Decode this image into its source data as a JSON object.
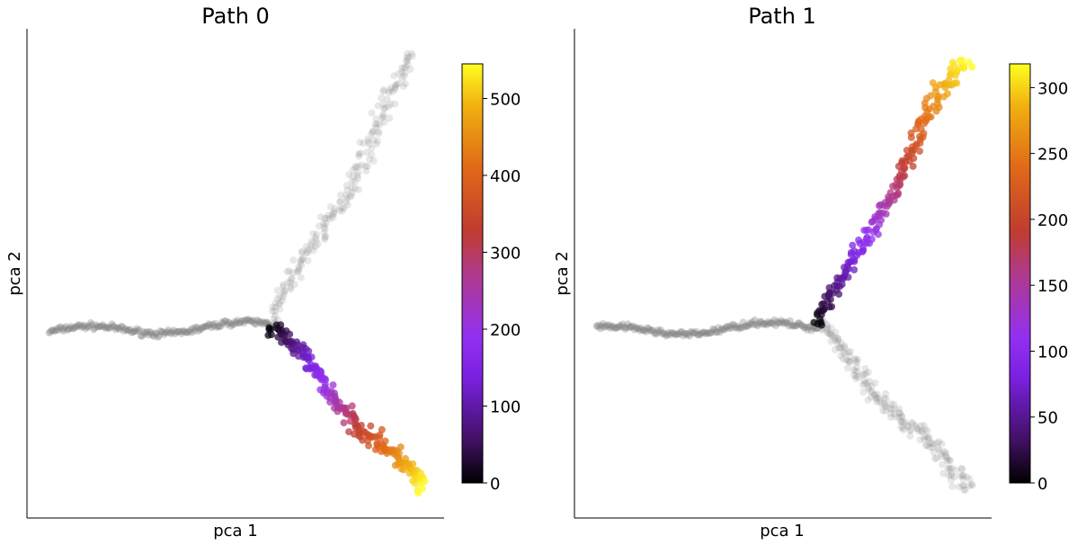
{
  "chart_data": [
    {
      "type": "scatter",
      "title": "Path 0",
      "xlabel": "pca 1",
      "ylabel": "pca 2",
      "colorbar": {
        "colormap": "gnuplot",
        "range": [
          0,
          545
        ],
        "ticks": [
          0,
          100,
          200,
          300,
          400,
          500
        ],
        "tick_labels": [
          "0",
          "100",
          "200",
          "300",
          "400",
          "500"
        ]
      },
      "background_points_color": "#808080",
      "branch_points": [
        {
          "segment": "stem",
          "from": [
            -7.0,
            0.0
          ],
          "to": [
            0.0,
            0.15
          ],
          "highlighted": false
        },
        {
          "segment": "upper-branch",
          "from": [
            0.0,
            0.15
          ],
          "to": [
            4.6,
            6.8
          ],
          "highlighted": false
        },
        {
          "segment": "lower-branch",
          "from": [
            0.0,
            0.15
          ],
          "to": [
            4.8,
            -3.9
          ],
          "highlighted": true,
          "pseudotime_range": [
            0,
            545
          ]
        }
      ]
    },
    {
      "type": "scatter",
      "title": "Path 1",
      "xlabel": "pca 1",
      "ylabel": "pca 2",
      "colorbar": {
        "colormap": "gnuplot",
        "range": [
          0,
          318
        ],
        "ticks": [
          0,
          50,
          100,
          150,
          200,
          250,
          300
        ],
        "tick_labels": [
          "0",
          "50",
          "100",
          "150",
          "200",
          "250",
          "300"
        ]
      },
      "background_points_color": "#808080",
      "branch_points": [
        {
          "segment": "stem",
          "from": [
            -7.0,
            0.0
          ],
          "to": [
            0.0,
            0.15
          ],
          "highlighted": false
        },
        {
          "segment": "upper-branch",
          "from": [
            0.0,
            0.15
          ],
          "to": [
            4.6,
            6.8
          ],
          "highlighted": true,
          "pseudotime_range": [
            0,
            318
          ]
        },
        {
          "segment": "lower-branch",
          "from": [
            0.0,
            0.15
          ],
          "to": [
            4.8,
            -3.9
          ],
          "highlighted": false
        }
      ]
    }
  ]
}
